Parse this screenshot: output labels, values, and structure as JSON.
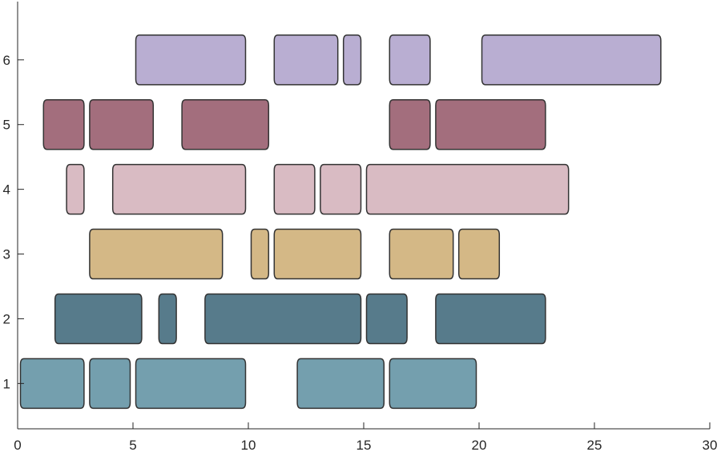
{
  "chart_data": {
    "type": "bar",
    "subtype": "broken-horizontal-bar (rounded capsule segments)",
    "title": "",
    "xlabel": "",
    "ylabel": "",
    "xlim": [
      0,
      30
    ],
    "ylim": [
      0.3,
      6.9
    ],
    "xticks": [
      0,
      5,
      10,
      15,
      20,
      25,
      30
    ],
    "yticks": [
      1,
      2,
      3,
      4,
      5,
      6
    ],
    "grid": false,
    "rows": [
      {
        "y": 1,
        "color": "#749fae",
        "segments": [
          [
            0,
            3
          ],
          [
            3,
            5
          ],
          [
            5,
            10
          ],
          [
            12,
            16
          ],
          [
            16,
            20
          ]
        ]
      },
      {
        "y": 2,
        "color": "#577b8b",
        "segments": [
          [
            1.5,
            5.5
          ],
          [
            6,
            7
          ],
          [
            8,
            15
          ],
          [
            15,
            17
          ],
          [
            18,
            23
          ]
        ]
      },
      {
        "y": 3,
        "color": "#d4b886",
        "segments": [
          [
            3,
            9
          ],
          [
            10,
            11
          ],
          [
            11,
            15
          ],
          [
            16,
            19
          ],
          [
            19,
            21
          ]
        ]
      },
      {
        "y": 4,
        "color": "#d9bbc3",
        "segments": [
          [
            2,
            3
          ],
          [
            4,
            10
          ],
          [
            11,
            13
          ],
          [
            13,
            15
          ],
          [
            15,
            24
          ]
        ]
      },
      {
        "y": 5,
        "color": "#a36e7d",
        "segments": [
          [
            1,
            3
          ],
          [
            3,
            6
          ],
          [
            7,
            11
          ],
          [
            16,
            18
          ],
          [
            18,
            23
          ]
        ]
      },
      {
        "y": 6,
        "color": "#b9aed2",
        "segments": [
          [
            5,
            10
          ],
          [
            11,
            14
          ],
          [
            14,
            15
          ],
          [
            16,
            18
          ],
          [
            20,
            28
          ]
        ]
      }
    ]
  }
}
